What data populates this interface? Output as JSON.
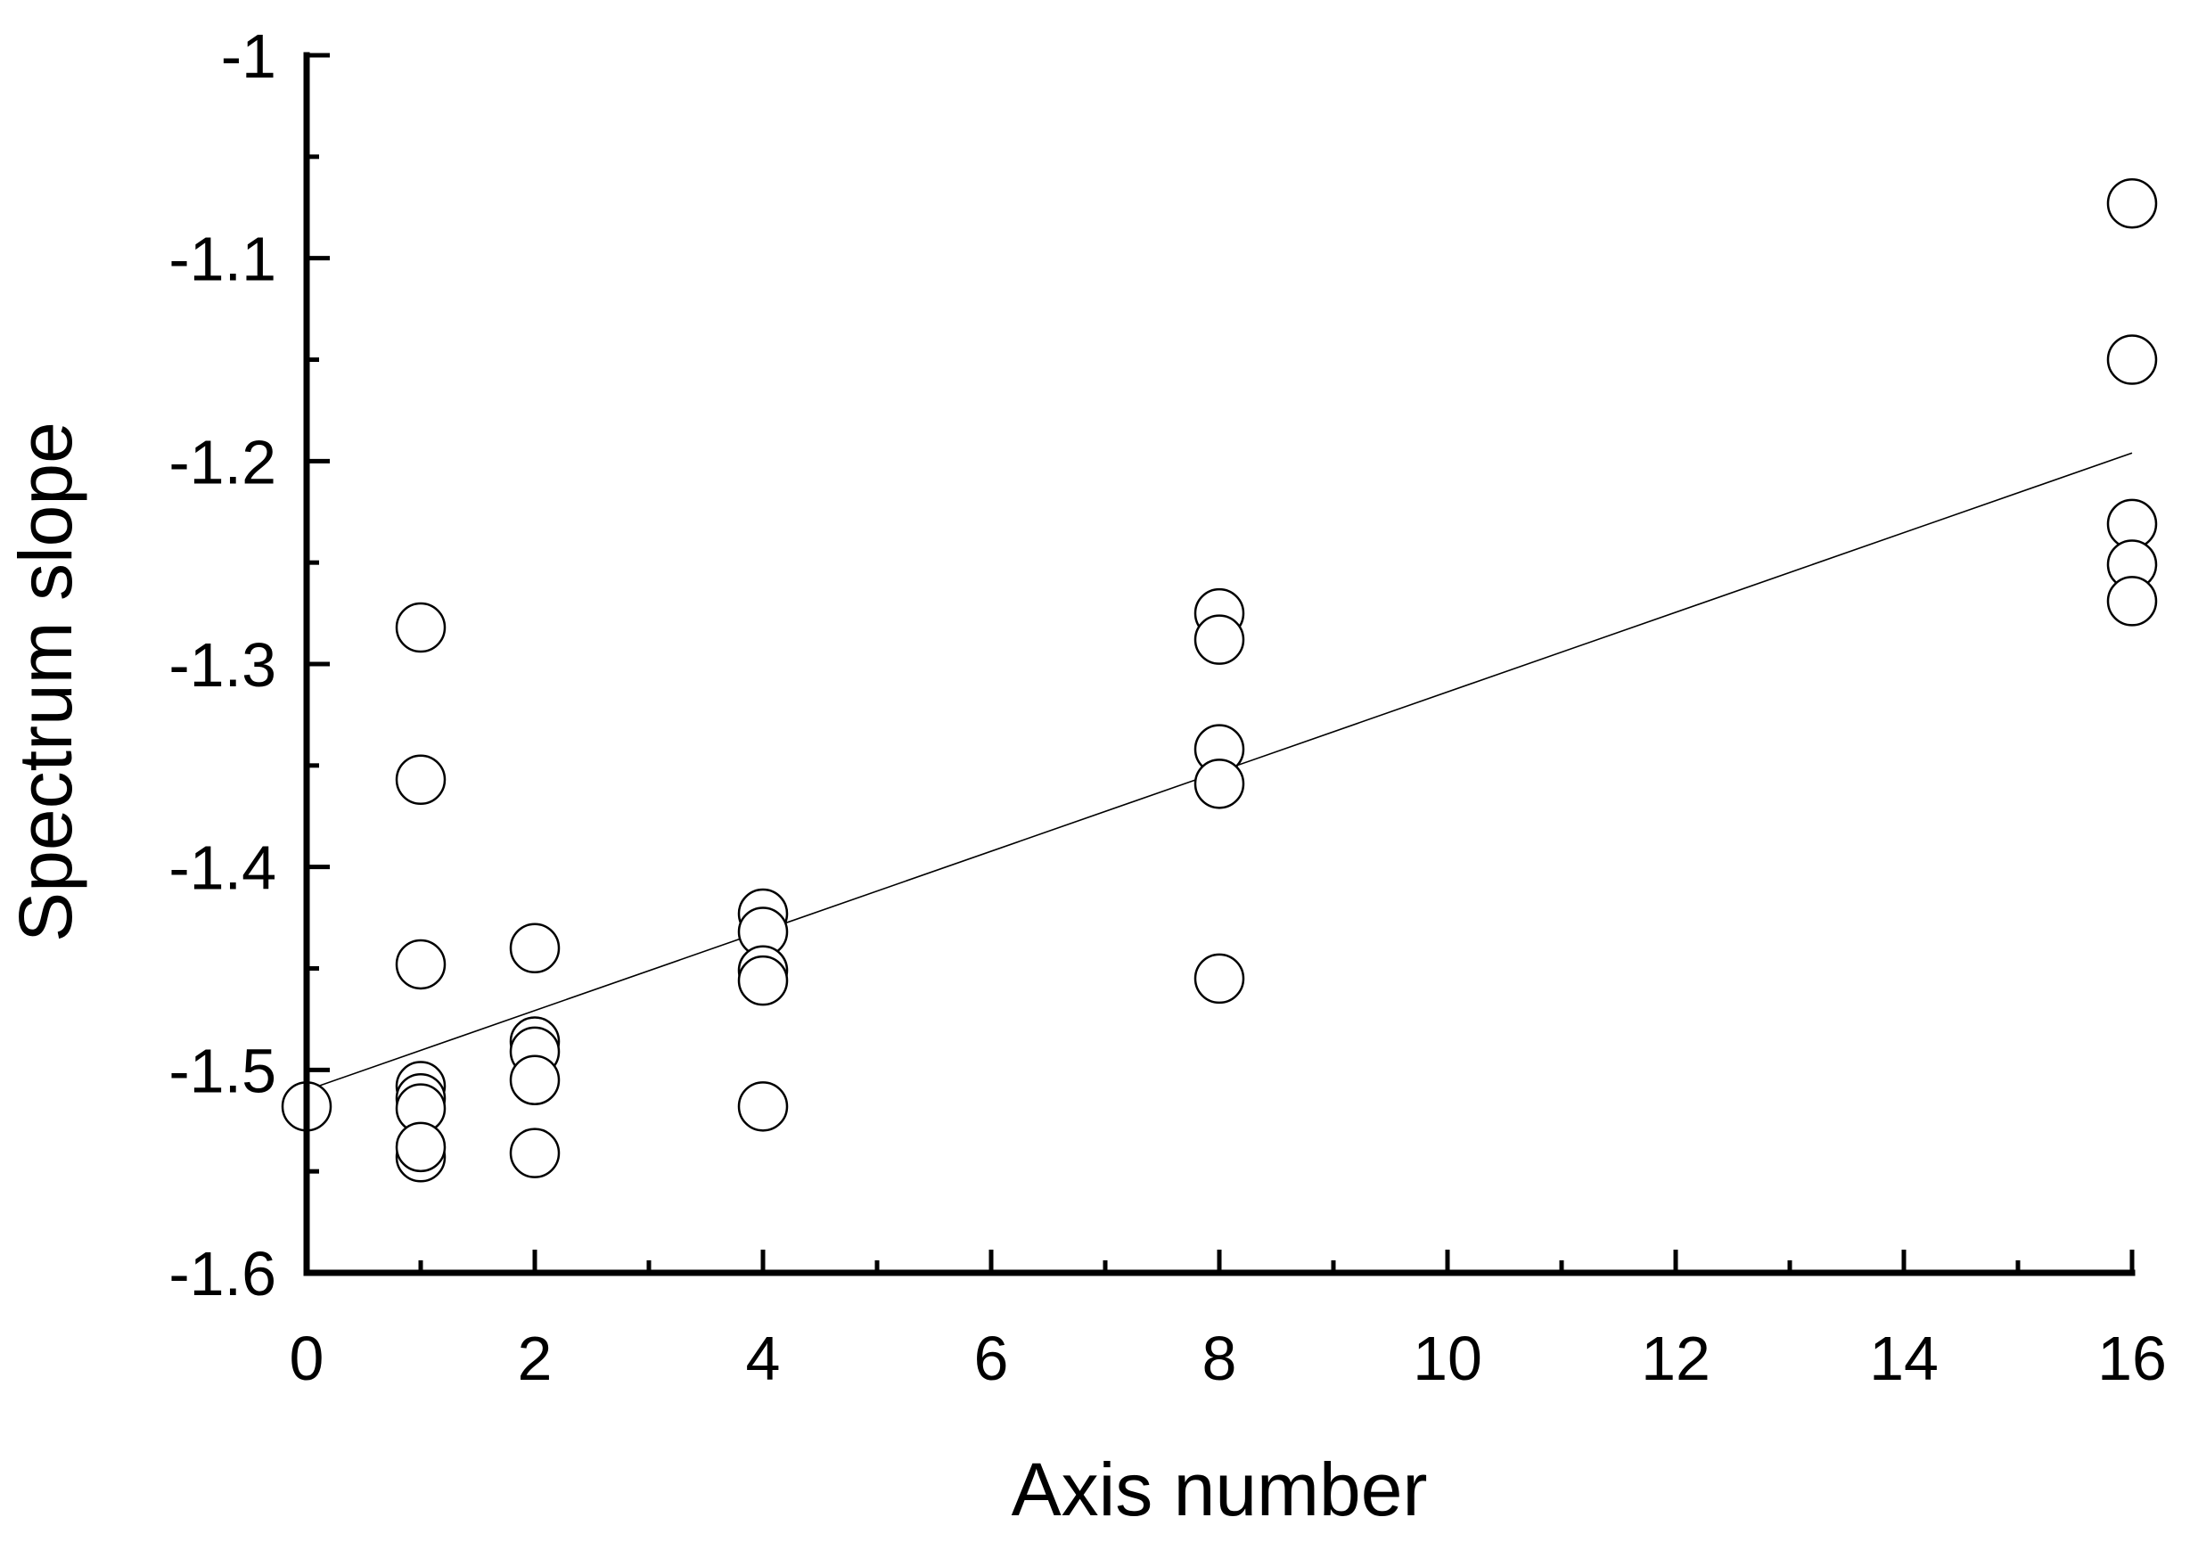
{
  "chart_data": {
    "type": "scatter",
    "title": "",
    "xlabel": "Axis number",
    "ylabel": "Spectrum slope",
    "xlim": [
      0,
      16
    ],
    "ylim": [
      -1.6,
      -1.0
    ],
    "x_ticks": [
      0,
      2,
      4,
      6,
      8,
      10,
      12,
      14,
      16
    ],
    "x_tick_labels": [
      "0",
      "2",
      "4",
      "6",
      "8",
      "10",
      "12",
      "14",
      "16"
    ],
    "x_minor_step": 1,
    "y_ticks": [
      -1.6,
      -1.5,
      -1.4,
      -1.3,
      -1.2,
      -1.1,
      -1.0
    ],
    "y_tick_labels": [
      "-1.6",
      "-1.5",
      "-1.4",
      "-1.3",
      "-1.2",
      "-1.1",
      "-1"
    ],
    "y_minor_step": 0.05,
    "grid": false,
    "marker": "open-circle",
    "series": [
      {
        "points": [
          [
            0,
            -1.518
          ],
          [
            1,
            -1.282
          ],
          [
            1,
            -1.357
          ],
          [
            1,
            -1.448
          ],
          [
            1,
            -1.508
          ],
          [
            1,
            -1.514
          ],
          [
            1,
            -1.519
          ],
          [
            1,
            -1.543
          ],
          [
            1,
            -1.538
          ],
          [
            2,
            -1.44
          ],
          [
            2,
            -1.486
          ],
          [
            2,
            -1.491
          ],
          [
            2,
            -1.505
          ],
          [
            2,
            -1.541
          ],
          [
            4,
            -1.423
          ],
          [
            4,
            -1.432
          ],
          [
            4,
            -1.451
          ],
          [
            4,
            -1.456
          ],
          [
            4,
            -1.518
          ],
          [
            8,
            -1.275
          ],
          [
            8,
            -1.288
          ],
          [
            8,
            -1.342
          ],
          [
            8,
            -1.359
          ],
          [
            8,
            -1.455
          ],
          [
            16,
            -1.073
          ],
          [
            16,
            -1.15
          ],
          [
            16,
            -1.231
          ],
          [
            16,
            -1.251
          ],
          [
            16,
            -1.269
          ]
        ]
      }
    ],
    "fit_line": {
      "x": [
        0,
        16
      ],
      "y": [
        -1.51,
        -1.196
      ]
    }
  }
}
